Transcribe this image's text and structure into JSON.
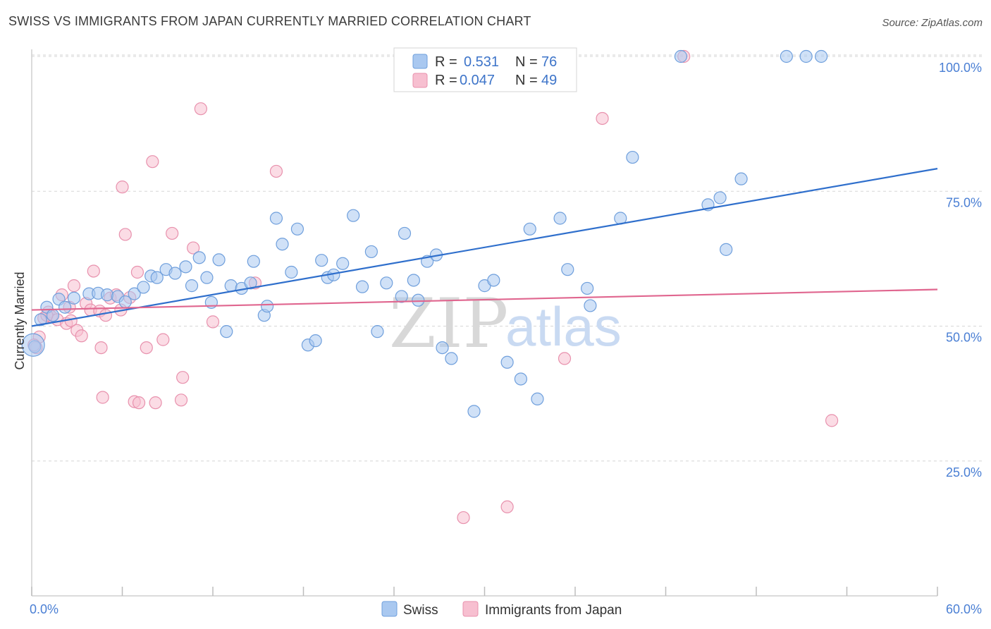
{
  "title": "SWISS VS IMMIGRANTS FROM JAPAN CURRENTLY MARRIED CORRELATION CHART",
  "source": "Source: ZipAtlas.com",
  "watermark": {
    "zip": "ZIP",
    "atlas": "atlas"
  },
  "colors": {
    "swiss_fill": "#a9c8f0",
    "swiss_stroke": "#6f9fdc",
    "swiss_line": "#2f6fcc",
    "japan_fill": "#f7bfd0",
    "japan_stroke": "#e891ad",
    "japan_line": "#e0668f",
    "grid": "#d6d6d6",
    "tick_text": "#4a7fd4"
  },
  "legend": {
    "rows": [
      {
        "r_label": "R =",
        "r_value": "0.531",
        "n_label": "N =",
        "n_value": "76"
      },
      {
        "r_label": "R =",
        "r_value": "0.047",
        "n_label": "N =",
        "n_value": "49"
      }
    ]
  },
  "chart_data": {
    "type": "scatter",
    "title": "SWISS VS IMMIGRANTS FROM JAPAN CURRENTLY MARRIED CORRELATION CHART",
    "xlabel": "",
    "ylabel": "Currently Married",
    "xlim": [
      0,
      60
    ],
    "ylim": [
      0,
      105
    ],
    "x_tick_labels": [
      "0.0%",
      "60.0%"
    ],
    "y_ticks": [
      25,
      50,
      75,
      100
    ],
    "y_tick_labels": [
      "25.0%",
      "50.0%",
      "75.0%",
      "100.0%"
    ],
    "grid": true,
    "series": [
      {
        "name": "Swiss",
        "trend": {
          "x": [
            0,
            60
          ],
          "y": [
            50.0,
            79.2
          ]
        },
        "points": [
          [
            0.2,
            46.2
          ],
          [
            0.6,
            51.2
          ],
          [
            1.0,
            53.5
          ],
          [
            1.4,
            52.0
          ],
          [
            1.8,
            55.0
          ],
          [
            2.2,
            53.5
          ],
          [
            2.8,
            55.2
          ],
          [
            3.8,
            56.0
          ],
          [
            4.4,
            56.1
          ],
          [
            5.0,
            55.8
          ],
          [
            5.7,
            55.5
          ],
          [
            6.2,
            54.5
          ],
          [
            6.8,
            56.0
          ],
          [
            7.4,
            57.2
          ],
          [
            7.9,
            59.3
          ],
          [
            8.3,
            59.0
          ],
          [
            8.9,
            60.5
          ],
          [
            9.5,
            59.8
          ],
          [
            10.2,
            61.0
          ],
          [
            10.6,
            57.5
          ],
          [
            11.1,
            62.7
          ],
          [
            11.6,
            59.0
          ],
          [
            11.9,
            54.4
          ],
          [
            12.4,
            62.3
          ],
          [
            12.9,
            49.0
          ],
          [
            13.2,
            57.5
          ],
          [
            13.9,
            57.0
          ],
          [
            14.5,
            58.0
          ],
          [
            14.7,
            62.0
          ],
          [
            15.4,
            52.0
          ],
          [
            15.6,
            53.7
          ],
          [
            16.2,
            70.0
          ],
          [
            16.6,
            65.2
          ],
          [
            17.2,
            60.0
          ],
          [
            17.6,
            68.0
          ],
          [
            18.3,
            46.5
          ],
          [
            18.8,
            47.3
          ],
          [
            19.2,
            62.2
          ],
          [
            19.6,
            59.0
          ],
          [
            20.0,
            59.5
          ],
          [
            20.6,
            61.6
          ],
          [
            21.3,
            70.5
          ],
          [
            21.9,
            57.3
          ],
          [
            22.5,
            63.8
          ],
          [
            22.9,
            49.0
          ],
          [
            23.5,
            58.0
          ],
          [
            24.5,
            55.5
          ],
          [
            24.7,
            67.2
          ],
          [
            25.3,
            58.5
          ],
          [
            25.6,
            54.8
          ],
          [
            26.2,
            62.0
          ],
          [
            26.8,
            63.2
          ],
          [
            27.2,
            46.0
          ],
          [
            27.8,
            44.0
          ],
          [
            29.3,
            34.2
          ],
          [
            30.0,
            57.5
          ],
          [
            30.6,
            58.5
          ],
          [
            31.5,
            43.3
          ],
          [
            32.4,
            40.2
          ],
          [
            33.0,
            68.0
          ],
          [
            33.5,
            36.5
          ],
          [
            35.0,
            70.0
          ],
          [
            35.5,
            60.5
          ],
          [
            36.8,
            57.0
          ],
          [
            37.0,
            53.8
          ],
          [
            39.0,
            70.0
          ],
          [
            39.8,
            81.3
          ],
          [
            43.0,
            100.0
          ],
          [
            44.8,
            72.5
          ],
          [
            45.6,
            73.8
          ],
          [
            46.0,
            64.2
          ],
          [
            47.0,
            77.3
          ],
          [
            50.0,
            100.0
          ],
          [
            51.3,
            100.0
          ],
          [
            52.3,
            100.0
          ],
          [
            0.1,
            46.5
          ]
        ]
      },
      {
        "name": "Immigrants from Japan",
        "trend": {
          "x": [
            0,
            60
          ],
          "y": [
            53.0,
            56.8
          ]
        },
        "points": [
          [
            0.3,
            46.0
          ],
          [
            0.5,
            48.0
          ],
          [
            0.8,
            51.5
          ],
          [
            1.1,
            52.6
          ],
          [
            1.3,
            51.8
          ],
          [
            1.7,
            51.2
          ],
          [
            2.0,
            55.8
          ],
          [
            2.3,
            50.5
          ],
          [
            2.6,
            51.0
          ],
          [
            2.8,
            57.5
          ],
          [
            3.0,
            49.2
          ],
          [
            3.3,
            48.2
          ],
          [
            3.6,
            54.2
          ],
          [
            3.9,
            53.0
          ],
          [
            4.1,
            60.2
          ],
          [
            4.5,
            52.8
          ],
          [
            4.6,
            46.0
          ],
          [
            4.7,
            36.8
          ],
          [
            4.9,
            52.0
          ],
          [
            5.2,
            55.2
          ],
          [
            5.6,
            55.8
          ],
          [
            5.9,
            53.0
          ],
          [
            6.0,
            75.8
          ],
          [
            6.2,
            67.0
          ],
          [
            6.5,
            55.3
          ],
          [
            6.8,
            36.0
          ],
          [
            7.0,
            60.0
          ],
          [
            7.1,
            35.8
          ],
          [
            7.6,
            46.0
          ],
          [
            8.0,
            80.5
          ],
          [
            8.2,
            35.8
          ],
          [
            8.7,
            47.5
          ],
          [
            9.3,
            67.2
          ],
          [
            9.9,
            36.3
          ],
          [
            10.0,
            40.5
          ],
          [
            10.7,
            64.5
          ],
          [
            11.2,
            90.3
          ],
          [
            12.0,
            50.8
          ],
          [
            14.8,
            58.0
          ],
          [
            16.2,
            78.7
          ],
          [
            28.6,
            14.5
          ],
          [
            31.5,
            16.5
          ],
          [
            35.3,
            44.0
          ],
          [
            37.8,
            88.5
          ],
          [
            43.2,
            100.0
          ],
          [
            53.0,
            32.5
          ],
          [
            0.15,
            46.5
          ],
          [
            1.0,
            52.0
          ],
          [
            2.5,
            53.5
          ]
        ]
      }
    ]
  },
  "bottom_legend": [
    "Swiss",
    "Immigrants from Japan"
  ]
}
